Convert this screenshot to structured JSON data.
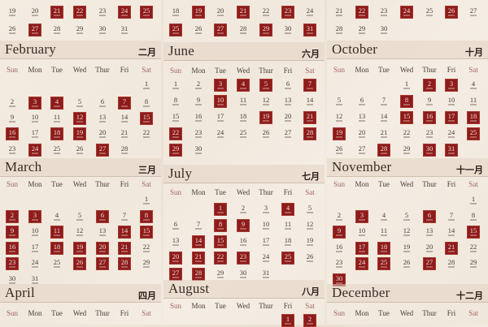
{
  "weekdays": [
    "Sun",
    "Mon",
    "Tue",
    "Wed",
    "Thur",
    "Fri",
    "Sat"
  ],
  "colors": {
    "highlight": "#8d1c1c",
    "background": "#efe6da",
    "text": "#3a2a22",
    "weekend_label": "#a2665c"
  },
  "months": [
    {
      "name": "",
      "cn": "",
      "weeks": [
        [
          19,
          20,
          21,
          22,
          23,
          24,
          25
        ],
        [
          26,
          27,
          28,
          29,
          30,
          31,
          null
        ]
      ],
      "highlighted": [
        21,
        22,
        24,
        25,
        27
      ]
    },
    {
      "name": "",
      "cn": "",
      "weeks": [
        [
          18,
          19,
          20,
          21,
          22,
          23,
          24
        ],
        [
          25,
          26,
          27,
          28,
          29,
          30,
          31
        ]
      ],
      "highlighted": [
        19,
        21,
        23,
        25,
        27,
        29,
        31
      ]
    },
    {
      "name": "",
      "cn": "",
      "weeks": [
        [
          21,
          22,
          23,
          24,
          25,
          26,
          27
        ],
        [
          28,
          29,
          30,
          null,
          null,
          null,
          null
        ]
      ],
      "highlighted": [
        22,
        24,
        26
      ]
    },
    {
      "name": "February",
      "cn": "二月",
      "weeks": [
        [
          null,
          null,
          null,
          null,
          null,
          null,
          1
        ],
        [
          2,
          3,
          4,
          5,
          6,
          7,
          8
        ],
        [
          9,
          10,
          11,
          12,
          13,
          14,
          15
        ],
        [
          16,
          17,
          18,
          19,
          20,
          21,
          22
        ],
        [
          23,
          24,
          25,
          26,
          27,
          28,
          null
        ]
      ],
      "highlighted": [
        3,
        4,
        7,
        12,
        15,
        16,
        18,
        19,
        24,
        27
      ]
    },
    {
      "name": "June",
      "cn": "六月",
      "weeks": [
        [
          1,
          2,
          3,
          4,
          5,
          6,
          7
        ],
        [
          8,
          9,
          10,
          11,
          12,
          13,
          14
        ],
        [
          15,
          16,
          17,
          18,
          19,
          20,
          21
        ],
        [
          22,
          23,
          24,
          25,
          26,
          27,
          28
        ],
        [
          29,
          30,
          null,
          null,
          null,
          null,
          null
        ]
      ],
      "highlighted": [
        3,
        4,
        5,
        7,
        10,
        19,
        21,
        22,
        28,
        29
      ]
    },
    {
      "name": "October",
      "cn": "十月",
      "weeks": [
        [
          null,
          null,
          null,
          1,
          2,
          3,
          4
        ],
        [
          5,
          6,
          7,
          8,
          9,
          10,
          11
        ],
        [
          12,
          13,
          14,
          15,
          16,
          17,
          18
        ],
        [
          19,
          20,
          21,
          22,
          23,
          24,
          25
        ],
        [
          26,
          27,
          28,
          29,
          30,
          31,
          null
        ]
      ],
      "highlighted": [
        2,
        3,
        8,
        15,
        16,
        17,
        18,
        19,
        25,
        28,
        30,
        31
      ]
    },
    {
      "name": "March",
      "cn": "三月",
      "weeks": [
        [
          null,
          null,
          null,
          null,
          null,
          null,
          1
        ],
        [
          2,
          3,
          4,
          5,
          6,
          7,
          8
        ],
        [
          9,
          10,
          11,
          12,
          13,
          14,
          15
        ],
        [
          16,
          17,
          18,
          19,
          20,
          21,
          22
        ],
        [
          23,
          24,
          25,
          26,
          27,
          28,
          29
        ],
        [
          30,
          31,
          null,
          null,
          null,
          null,
          null
        ]
      ],
      "highlighted": [
        2,
        3,
        6,
        8,
        9,
        11,
        14,
        15,
        16,
        18,
        19,
        20,
        21,
        23,
        26,
        27,
        28
      ]
    },
    {
      "name": "July",
      "cn": "七月",
      "weeks": [
        [
          null,
          null,
          1,
          2,
          3,
          4,
          5
        ],
        [
          6,
          7,
          8,
          9,
          10,
          11,
          12
        ],
        [
          13,
          14,
          15,
          16,
          17,
          18,
          19
        ],
        [
          20,
          21,
          22,
          23,
          24,
          25,
          26
        ],
        [
          27,
          28,
          29,
          30,
          31,
          null,
          null
        ]
      ],
      "highlighted": [
        1,
        4,
        8,
        9,
        14,
        15,
        20,
        21,
        22,
        23,
        25,
        27,
        28
      ]
    },
    {
      "name": "November",
      "cn": "十一月",
      "weeks": [
        [
          null,
          null,
          null,
          null,
          null,
          null,
          1
        ],
        [
          2,
          3,
          4,
          5,
          6,
          7,
          8
        ],
        [
          9,
          10,
          11,
          12,
          13,
          14,
          15
        ],
        [
          16,
          17,
          18,
          19,
          20,
          21,
          22
        ],
        [
          23,
          24,
          25,
          26,
          27,
          28,
          29
        ],
        [
          30,
          null,
          null,
          null,
          null,
          null,
          null
        ]
      ],
      "highlighted": [
        3,
        6,
        9,
        15,
        17,
        18,
        21,
        24,
        25,
        27,
        30
      ]
    },
    {
      "name": "April",
      "cn": "四月",
      "weeks": [],
      "highlighted": []
    },
    {
      "name": "August",
      "cn": "八月",
      "weeks": [
        [
          null,
          null,
          null,
          null,
          null,
          1,
          2
        ]
      ],
      "highlighted": [
        1,
        2
      ]
    },
    {
      "name": "December",
      "cn": "十二月",
      "weeks": [],
      "highlighted": []
    }
  ]
}
